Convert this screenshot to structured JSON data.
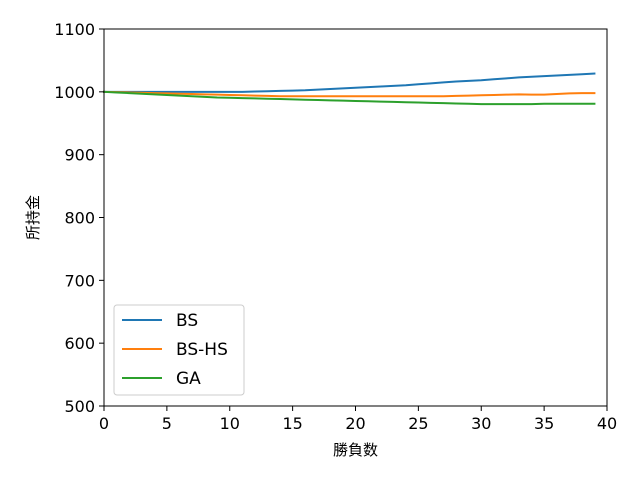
{
  "chart_data": {
    "type": "line",
    "title": "",
    "xlabel": "勝負数",
    "ylabel": "所持金",
    "xlim": [
      0,
      40
    ],
    "ylim": [
      500,
      1100
    ],
    "x_ticks": [
      0,
      5,
      10,
      15,
      20,
      25,
      30,
      35,
      40
    ],
    "y_ticks": [
      500,
      600,
      700,
      800,
      900,
      1000,
      1100
    ],
    "grid": false,
    "legend_position": "lower-left",
    "x": [
      0,
      1,
      2,
      3,
      4,
      5,
      6,
      7,
      8,
      9,
      10,
      11,
      12,
      13,
      14,
      15,
      16,
      17,
      18,
      19,
      20,
      21,
      22,
      23,
      24,
      25,
      26,
      27,
      28,
      29,
      30,
      31,
      32,
      33,
      34,
      35,
      36,
      37,
      38,
      39
    ],
    "series": [
      {
        "name": "BS",
        "color": "#1f77b4",
        "values": [
          1000,
          1000,
          1000,
          1000,
          1000,
          1000,
          1000,
          1000,
          1000,
          1000,
          1000,
          1000,
          1000.5,
          1001,
          1001.5,
          1002,
          1002.5,
          1003.5,
          1004.5,
          1005.5,
          1006.5,
          1007.5,
          1008.5,
          1009.5,
          1010.5,
          1012,
          1013.5,
          1015,
          1016.5,
          1017.5,
          1018.5,
          1020,
          1021.5,
          1023,
          1024,
          1025,
          1026,
          1027,
          1028,
          1029
        ]
      },
      {
        "name": "BS-HS",
        "color": "#ff7f0e",
        "values": [
          1000,
          999.5,
          999,
          998.5,
          998,
          997.5,
          997,
          996.5,
          996,
          995.5,
          995,
          994.5,
          994,
          993.5,
          993,
          993,
          993,
          993,
          993,
          993,
          993,
          993,
          993,
          993,
          993,
          993,
          993,
          993,
          993.5,
          994,
          994.5,
          995,
          995.5,
          996,
          995.5,
          995.5,
          996.5,
          997.5,
          998,
          998
        ]
      },
      {
        "name": "GA",
        "color": "#2ca02c",
        "values": [
          1000,
          999,
          998,
          997,
          996,
          995,
          994,
          993,
          992,
          991,
          990.5,
          990,
          989.5,
          989,
          988.5,
          988,
          987.5,
          987,
          986.5,
          986,
          985.5,
          985,
          984.5,
          984,
          983.5,
          983,
          982.5,
          982,
          981.5,
          981,
          980.5,
          980.5,
          980.5,
          980.5,
          980.5,
          981,
          981,
          981,
          981,
          981
        ]
      }
    ]
  }
}
